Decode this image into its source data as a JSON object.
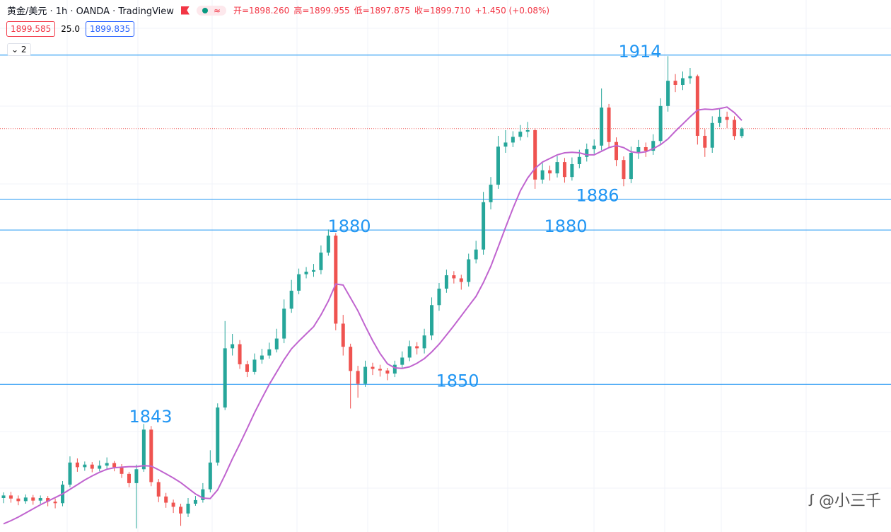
{
  "chart_data": {
    "type": "candlestick",
    "title": "黄金/美元 · 1h · OANDA · TradingView",
    "legend_values": [
      "开=1898.260",
      "高=1899.955",
      "低=1897.875",
      "收=1899.710",
      "+1.450 (+0.08%)"
    ],
    "quote": [
      "1899.585",
      "25.0",
      "1899.835"
    ],
    "indicator_count": 2,
    "watermark": "@小三千",
    "ylim": [
      1821.3,
      1924.7
    ],
    "up_color": "#26a69a",
    "down_color": "#ef5350",
    "ma_color": "#c064cf",
    "level_color": "#2196f3",
    "last_color": "#ef5350",
    "levels": [
      1914,
      1886,
      1880,
      1850
    ],
    "price_labels": [
      1843,
      1880,
      1850,
      1880,
      1886,
      1914
    ],
    "open": [
      1827.9,
      1828.4,
      1827.8,
      1827.3,
      1828.0,
      1827.4,
      1827.9,
      1827.2,
      1826.9,
      1830.5,
      1834.8,
      1833.9,
      1834.4,
      1833.6,
      1834.2,
      1834.7,
      1833.9,
      1832.6,
      1830.8,
      1833.5,
      1841.2,
      1831.0,
      1828.2,
      1827.0,
      1826.2,
      1824.9,
      1826.8,
      1827.5,
      1829.6,
      1834.8,
      1845.5,
      1857.0,
      1857.8,
      1853.9,
      1852.4,
      1854.8,
      1855.6,
      1856.8,
      1858.9,
      1864.7,
      1868.2,
      1871.4,
      1871.9,
      1872.2,
      1875.6,
      1878.9,
      1861.8,
      1857.3,
      1852.6,
      1850.1,
      1853.4,
      1853.0,
      1852.7,
      1852.1,
      1853.8,
      1855.2,
      1857.4,
      1857.0,
      1859.5,
      1865.4,
      1868.6,
      1871.2,
      1870.6,
      1869.9,
      1874.3,
      1876.2,
      1885.4,
      1888.8,
      1896.2,
      1897.0,
      1898.1,
      1899.1,
      1899.4,
      1889.8,
      1891.6,
      1891.0,
      1893.2,
      1890.3,
      1892.8,
      1894.2,
      1895.7,
      1896.4,
      1903.8,
      1897.1,
      1893.6,
      1889.9,
      1895.0,
      1896.1,
      1895.4,
      1897.3,
      1904.1,
      1909.0,
      1908.2,
      1909.5,
      1909.9,
      1898.3,
      1896.0,
      1900.8,
      1902.0,
      1901.4,
      1898.26
    ],
    "high": [
      1829.0,
      1829.1,
      1828.4,
      1828.6,
      1828.5,
      1828.4,
      1828.3,
      1827.8,
      1831.2,
      1836.0,
      1835.6,
      1835.0,
      1834.9,
      1835.2,
      1835.8,
      1835.1,
      1834.5,
      1833.0,
      1834.4,
      1842.3,
      1841.9,
      1831.6,
      1828.9,
      1827.6,
      1826.8,
      1827.9,
      1828.3,
      1830.8,
      1837.2,
      1846.3,
      1862.3,
      1859.8,
      1858.6,
      1854.6,
      1856.0,
      1856.9,
      1858.1,
      1860.8,
      1866.5,
      1870.3,
      1872.5,
      1872.8,
      1873.4,
      1877.0,
      1880.1,
      1879.4,
      1863.5,
      1857.9,
      1853.6,
      1854.6,
      1854.2,
      1853.8,
      1853.2,
      1854.6,
      1856.4,
      1858.5,
      1858.2,
      1860.8,
      1866.9,
      1869.7,
      1872.3,
      1872.0,
      1871.3,
      1875.4,
      1877.9,
      1887.4,
      1890.3,
      1898.3,
      1899.4,
      1899.2,
      1900.4,
      1901.0,
      1899.8,
      1893.0,
      1892.5,
      1894.4,
      1894.0,
      1894.1,
      1895.6,
      1896.8,
      1897.6,
      1907.5,
      1904.5,
      1898.0,
      1894.3,
      1896.2,
      1897.5,
      1897.0,
      1898.6,
      1905.6,
      1913.8,
      1910.3,
      1910.8,
      1911.5,
      1910.2,
      1899.6,
      1902.1,
      1903.5,
      1903.0,
      1902.1,
      1899.955
    ],
    "low": [
      1826.9,
      1827.0,
      1826.5,
      1826.8,
      1826.6,
      1826.8,
      1826.3,
      1825.9,
      1826.3,
      1830.0,
      1833.0,
      1833.2,
      1832.9,
      1833.1,
      1833.6,
      1833.1,
      1831.8,
      1830.0,
      1822.0,
      1833.0,
      1830.2,
      1827.1,
      1826.0,
      1825.0,
      1822.5,
      1824.2,
      1826.4,
      1827.0,
      1829.0,
      1834.2,
      1845.0,
      1855.6,
      1853.0,
      1851.4,
      1851.9,
      1854.0,
      1855.0,
      1856.2,
      1858.0,
      1863.9,
      1867.5,
      1870.6,
      1870.9,
      1871.4,
      1875.0,
      1860.5,
      1855.6,
      1845.3,
      1847.4,
      1849.5,
      1851.8,
      1851.5,
      1850.8,
      1851.4,
      1853.0,
      1854.5,
      1855.8,
      1856.0,
      1858.6,
      1864.3,
      1867.8,
      1869.6,
      1868.4,
      1869.0,
      1873.5,
      1875.2,
      1884.0,
      1888.0,
      1895.0,
      1896.1,
      1897.4,
      1898.0,
      1888.0,
      1889.0,
      1889.6,
      1890.2,
      1889.2,
      1889.6,
      1892.0,
      1893.3,
      1894.8,
      1895.5,
      1896.0,
      1892.4,
      1888.5,
      1889.1,
      1893.8,
      1894.2,
      1894.6,
      1896.5,
      1903.0,
      1906.8,
      1907.2,
      1908.4,
      1896.6,
      1894.2,
      1895.0,
      1900.0,
      1899.8,
      1897.5,
      1897.875
    ],
    "close": [
      1828.4,
      1827.8,
      1827.3,
      1828.0,
      1827.4,
      1827.9,
      1827.2,
      1826.9,
      1830.5,
      1834.8,
      1833.9,
      1834.4,
      1833.6,
      1834.2,
      1834.7,
      1833.9,
      1832.6,
      1830.8,
      1833.5,
      1841.2,
      1831.0,
      1828.2,
      1827.0,
      1826.2,
      1824.9,
      1826.8,
      1827.5,
      1829.6,
      1834.8,
      1845.5,
      1857.0,
      1857.8,
      1853.9,
      1852.4,
      1854.8,
      1855.6,
      1856.8,
      1858.9,
      1864.7,
      1868.2,
      1871.4,
      1871.9,
      1872.2,
      1875.6,
      1878.9,
      1861.8,
      1857.3,
      1852.6,
      1850.1,
      1853.4,
      1853.0,
      1852.7,
      1852.1,
      1853.8,
      1855.2,
      1857.4,
      1857.0,
      1859.5,
      1865.4,
      1868.6,
      1871.2,
      1870.6,
      1869.9,
      1874.3,
      1876.2,
      1885.4,
      1888.8,
      1896.2,
      1897.0,
      1898.1,
      1899.1,
      1899.4,
      1889.8,
      1891.6,
      1891.0,
      1893.2,
      1890.3,
      1892.8,
      1894.2,
      1895.7,
      1896.4,
      1903.8,
      1897.1,
      1893.6,
      1889.9,
      1895.0,
      1896.1,
      1895.4,
      1897.3,
      1904.1,
      1909.0,
      1908.2,
      1909.5,
      1909.9,
      1898.3,
      1896.0,
      1900.8,
      1902.0,
      1901.4,
      1898.26,
      1899.71
    ],
    "ma": [
      1822.9,
      1823.5,
      1824.2,
      1825.0,
      1825.8,
      1826.6,
      1827.3,
      1828.0,
      1828.7,
      1829.6,
      1830.5,
      1831.4,
      1832.2,
      1832.9,
      1833.5,
      1833.8,
      1833.9,
      1834.0,
      1834.0,
      1834.2,
      1834.1,
      1833.4,
      1832.6,
      1831.8,
      1830.9,
      1829.8,
      1828.7,
      1827.9,
      1827.8,
      1829.5,
      1832.4,
      1835.5,
      1838.4,
      1841.4,
      1844.5,
      1847.3,
      1850.0,
      1852.4,
      1854.8,
      1856.9,
      1858.4,
      1859.8,
      1861.2,
      1863.5,
      1866.2,
      1869.5,
      1869.3,
      1866.8,
      1864.3,
      1861.3,
      1858.5,
      1856.0,
      1854.0,
      1853.2,
      1853.1,
      1853.4,
      1854.1,
      1855.0,
      1856.3,
      1857.8,
      1859.6,
      1861.4,
      1863.3,
      1865.2,
      1867.1,
      1869.8,
      1872.9,
      1876.7,
      1880.5,
      1884.2,
      1887.6,
      1890.1,
      1892.0,
      1893.2,
      1893.9,
      1894.6,
      1895.0,
      1895.1,
      1895.0,
      1894.6,
      1894.6,
      1895.3,
      1896.0,
      1896.4,
      1896.0,
      1895.2,
      1895.0,
      1895.2,
      1895.8,
      1896.6,
      1897.7,
      1899.2,
      1900.6,
      1902.0,
      1903.3,
      1903.5,
      1903.4,
      1903.6,
      1903.9,
      1902.8,
      1901.3
    ]
  }
}
